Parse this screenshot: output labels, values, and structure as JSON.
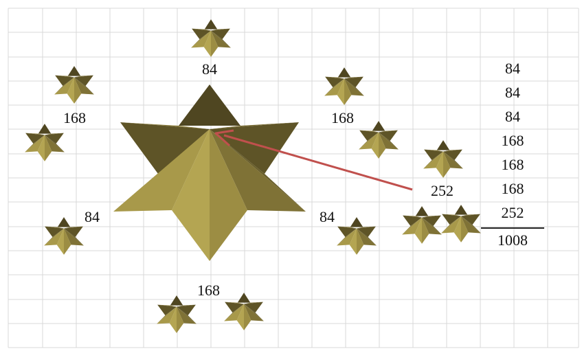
{
  "labels": {
    "top": "84",
    "upper_left": "168",
    "lower_left": "84",
    "bottom": "168",
    "upper_right": "168",
    "lower_right": "84",
    "far_right": "252"
  },
  "sum": {
    "items": [
      "84",
      "84",
      "84",
      "168",
      "168",
      "168",
      "252"
    ],
    "total": "1008"
  },
  "colors": {
    "star_dark": "#4f4621",
    "star_mid": "#8d7f3c",
    "star_light": "#b4a552",
    "arrow": "#c0504d",
    "grid": "#d9d9d9"
  }
}
